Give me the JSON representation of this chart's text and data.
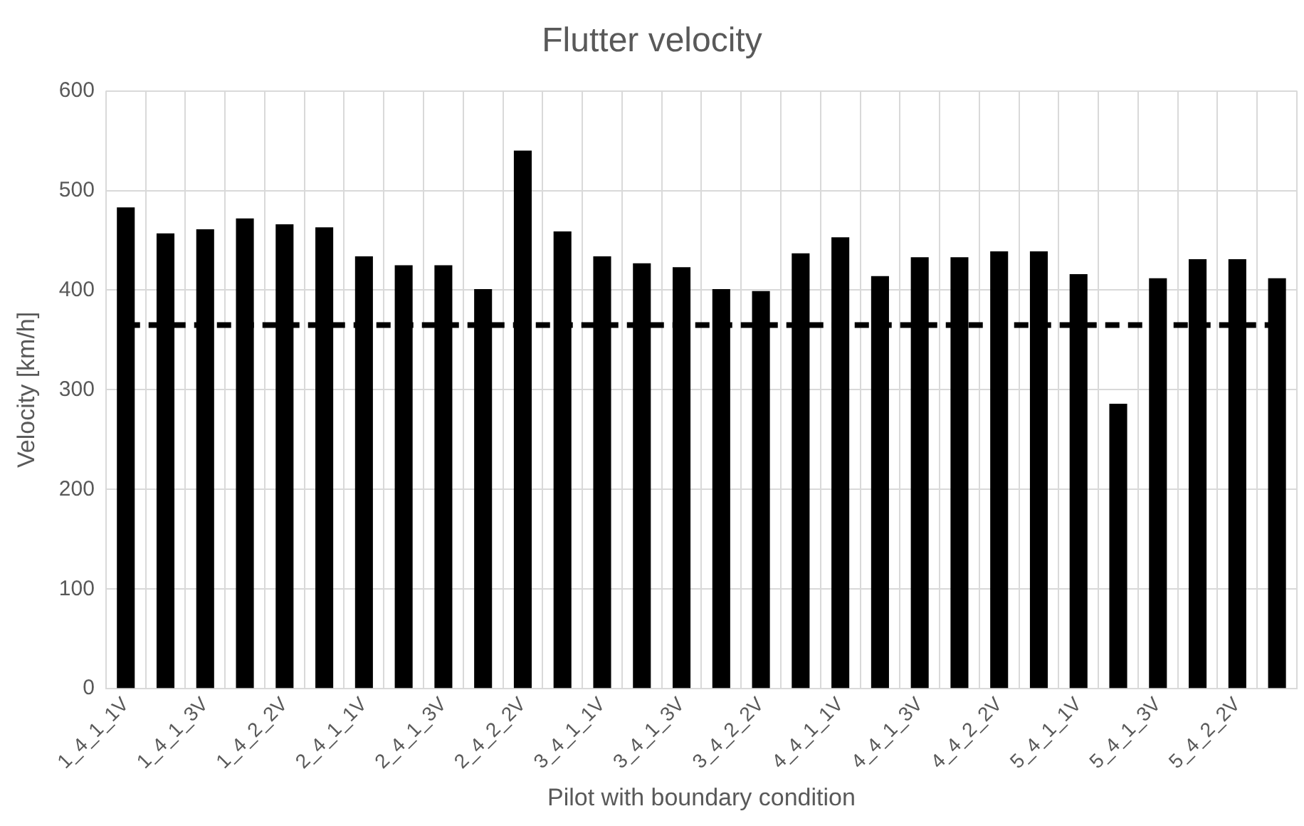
{
  "chart_data": {
    "type": "bar",
    "title": "Flutter velocity",
    "xlabel": "Pilot with boundary condition",
    "ylabel": "Velocity [km/h]",
    "categories": [
      "1_4_1_1V",
      null,
      "1_4_1_3V",
      null,
      "1_4_2_2V",
      null,
      "2_4_1_1V",
      null,
      "2_4_1_3V",
      null,
      "2_4_2_2V",
      null,
      "3_4_1_1V",
      null,
      "3_4_1_3V",
      null,
      "3_4_2_2V",
      null,
      "4_4_1_1V",
      null,
      "4_4_1_3V",
      null,
      "4_4_2_2V",
      null,
      "5_4_1_1V",
      null,
      "5_4_1_3V",
      null,
      "5_4_2_2V",
      null
    ],
    "values": [
      483,
      457,
      461,
      472,
      466,
      463,
      434,
      425,
      425,
      401,
      540,
      459,
      434,
      427,
      423,
      401,
      399,
      437,
      453,
      414,
      433,
      433,
      439,
      439,
      416,
      286,
      412,
      431,
      431,
      412
    ],
    "color": "#000000",
    "ylim": [
      0,
      600
    ],
    "yticks": [
      0,
      100,
      200,
      300,
      400,
      500,
      600
    ],
    "grid": true,
    "ref_lines": [
      {
        "axis": "y",
        "value": 365,
        "color": "#000000",
        "line_style": "dashed"
      }
    ]
  }
}
